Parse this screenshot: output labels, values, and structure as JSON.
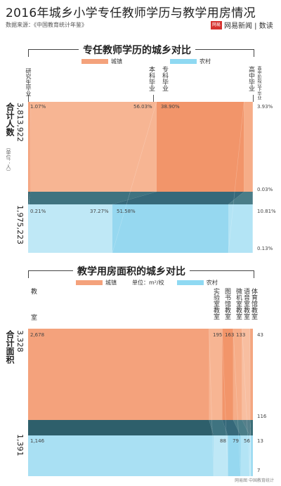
{
  "header": {
    "title": "2016年城乡小学专任教师学历与教学用房情况",
    "source": "数据来源：《中国教育统计年鉴》",
    "brand_logo": "网易",
    "brand_name": "网易新闻 | 数读"
  },
  "section1": {
    "title": "专任教师学历的城乡对比",
    "legend_urban": "城镇",
    "legend_rural": "农村",
    "row_label": "合计人数",
    "unit": "（单位：人）",
    "urban_total": "3,813,922",
    "rural_total": "1,975,223",
    "categories": [
      "研究生毕业",
      "本科毕业",
      "专科毕业",
      "高中毕业",
      "高中阶段以下毕业"
    ],
    "urban_labels": [
      "1.07%",
      "56.03%",
      "38.90%",
      "3.93%",
      "0.03%"
    ],
    "rural_labels": [
      "0.21%",
      "37.27%",
      "51.58%",
      "10.81%",
      "0.13%"
    ]
  },
  "section2": {
    "title": "教学用房面积的城乡对比",
    "legend_urban": "城镇",
    "legend_rural": "农村",
    "unit": "单位：m²/校",
    "row_label": "合计面积",
    "urban_total": "3,328",
    "rural_total": "1,391",
    "categories": [
      "教室",
      "实验室教室",
      "图书馆教室",
      "微机室教室",
      "语音室教室",
      "体育馆教室"
    ],
    "urban_labels": [
      "2,678",
      "195",
      "163",
      "133",
      "116",
      "43"
    ],
    "rural_labels": [
      "1,146",
      "88",
      "79",
      "56",
      "7",
      "13"
    ]
  },
  "footer": "网易图  中国教育统计",
  "chart_data": [
    {
      "type": "bar",
      "title": "专任教师学历的城乡对比",
      "categories": [
        "研究生毕业",
        "本科毕业",
        "专科毕业",
        "高中毕业",
        "高中阶段以下毕业"
      ],
      "series": [
        {
          "name": "城镇",
          "values": [
            1.07,
            56.03,
            38.9,
            3.93,
            0.03
          ]
        },
        {
          "name": "农村",
          "values": [
            0.21,
            37.27,
            51.58,
            10.81,
            0.13
          ]
        }
      ],
      "colors": {
        "urban": "#f4a27c",
        "rural": "#a9e0f3"
      }
    },
    {
      "type": "bar",
      "title": "教学用房面积的城乡对比",
      "categories": [
        "教室",
        "实验室教室",
        "图书馆教室",
        "微机室教室",
        "语音室教室",
        "体育馆教室"
      ],
      "series": [
        {
          "name": "城镇",
          "values": [
            2678,
            195,
            163,
            133,
            116,
            43
          ]
        },
        {
          "name": "农村",
          "values": [
            1146,
            88,
            79,
            56,
            7,
            13
          ]
        }
      ],
      "colors": {
        "urban": "#f4a27c",
        "rural": "#a9e0f3"
      }
    }
  ]
}
